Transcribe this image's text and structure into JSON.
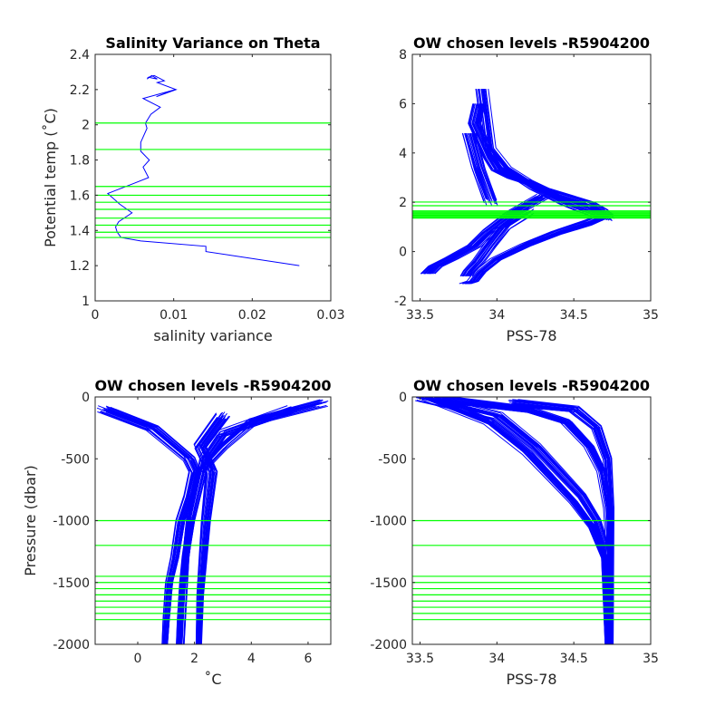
{
  "chart_data": [
    {
      "id": "p1",
      "type": "line",
      "title": "Salinity Variance on Theta",
      "xlabel": "salinity variance",
      "ylabel": "Potential temp (˚C)",
      "xlim": [
        0,
        0.03
      ],
      "ylim": [
        1,
        2.4
      ],
      "xticks": [
        0,
        0.01,
        0.02,
        0.03
      ],
      "xtick_labels": [
        "0",
        "0.01",
        "0.02",
        "0.03"
      ],
      "yticks": [
        1,
        1.2,
        1.4,
        1.6,
        1.8,
        2,
        2.2,
        2.4
      ],
      "ytick_labels": [
        "1",
        "1.2",
        "1.4",
        "1.6",
        "1.8",
        "2",
        "2.2",
        "2.4"
      ],
      "levels": [
        2.01,
        1.86,
        1.65,
        1.6,
        1.56,
        1.52,
        1.47,
        1.43,
        1.39,
        1.36
      ],
      "series": [
        {
          "x": [
            0.026,
            0.0141,
            0.0141,
            0.0058,
            0.0033,
            0.0028,
            0.0026,
            0.003,
            0.0047,
            0.0031,
            0.0016,
            0.0045,
            0.0068,
            0.0061,
            0.0069,
            0.0058,
            0.0058,
            0.0066,
            0.0064,
            0.0071,
            0.0083,
            0.0061,
            0.0102,
            0.0078,
            0.0103,
            0.0079,
            0.0088,
            0.0075,
            0.0068,
            0.0079,
            0.0072,
            0.0066
          ],
          "y": [
            1.2,
            1.28,
            1.31,
            1.34,
            1.36,
            1.39,
            1.42,
            1.45,
            1.5,
            1.55,
            1.61,
            1.66,
            1.7,
            1.76,
            1.8,
            1.85,
            1.9,
            1.98,
            2.01,
            2.06,
            2.1,
            2.15,
            2.2,
            2.16,
            2.2,
            2.24,
            2.25,
            2.28,
            2.27,
            2.26,
            2.28,
            2.26
          ]
        }
      ]
    },
    {
      "id": "p2",
      "type": "line",
      "title": "OW chosen levels -R5904200",
      "xlabel": "PSS-78",
      "ylabel": "",
      "xlim": [
        33.45,
        35
      ],
      "ylim": [
        -2,
        8
      ],
      "xticks": [
        33.5,
        34,
        34.5,
        35
      ],
      "xtick_labels": [
        "33.5",
        "34",
        "34.5",
        "35"
      ],
      "yticks": [
        -2,
        0,
        2,
        4,
        6,
        8
      ],
      "ytick_labels": [
        "-2",
        "0",
        "2",
        "4",
        "6",
        "8"
      ],
      "levels": [
        2.01,
        1.86,
        1.65,
        1.6,
        1.56,
        1.52,
        1.47,
        1.43,
        1.39,
        1.36
      ],
      "series": [
        {
          "x": [
            34.72,
            34.68,
            34.6,
            34.5,
            34.4,
            34.3,
            34.2,
            34.1,
            34.0,
            33.95,
            33.9,
            33.85,
            33.88
          ],
          "y": [
            1.35,
            1.6,
            1.9,
            2.1,
            2.3,
            2.5,
            2.8,
            3.0,
            3.3,
            3.8,
            4.5,
            5.2,
            6.0
          ]
        },
        {
          "x": [
            34.7,
            34.6,
            34.4,
            34.2,
            34.0,
            33.9,
            33.85,
            33.8
          ],
          "y": [
            1.5,
            1.2,
            0.8,
            0.3,
            -0.3,
            -0.8,
            -1.2,
            -1.3
          ]
        },
        {
          "x": [
            34.3,
            34.1,
            33.95,
            33.85,
            33.7,
            33.6,
            33.55
          ],
          "y": [
            2.2,
            1.5,
            0.8,
            0.2,
            -0.3,
            -0.6,
            -0.9
          ]
        },
        {
          "x": [
            34.7,
            34.45,
            34.25,
            34.05,
            33.95,
            33.9
          ],
          "y": [
            1.4,
            2.0,
            2.6,
            3.4,
            4.2,
            6.6
          ]
        },
        {
          "x": [
            34.2,
            34.05,
            33.95,
            33.88,
            33.82,
            33.8
          ],
          "y": [
            1.6,
            1.0,
            0.2,
            -0.4,
            -0.8,
            -1.0
          ]
        },
        {
          "x": [
            33.96,
            33.88,
            33.82
          ],
          "y": [
            2.0,
            3.4,
            4.8
          ]
        }
      ]
    },
    {
      "id": "p3",
      "type": "line",
      "title": "OW chosen levels -R5904200",
      "xlabel": "˚C",
      "ylabel": "Pressure (dbar)",
      "xlim": [
        -1.5,
        6.8
      ],
      "ylim": [
        -2000,
        0
      ],
      "xticks": [
        0,
        2,
        4,
        6
      ],
      "xtick_labels": [
        "0",
        "2",
        "4",
        "6"
      ],
      "yticks": [
        -2000,
        -1500,
        -1000,
        -500,
        0
      ],
      "ytick_labels": [
        "-2000",
        "-1500",
        "-1000",
        "-500",
        "0"
      ],
      "levels": [
        -1000,
        -1200,
        -1450,
        -1500,
        -1550,
        -1600,
        -1650,
        -1700,
        -1750,
        -1800
      ],
      "series": [
        {
          "x": [
            5.5,
            3.0,
            2.4,
            2.3,
            2.1,
            1.9,
            1.7,
            1.6,
            1.5,
            1.45
          ],
          "y": [
            -100,
            -300,
            -500,
            -600,
            -800,
            -1000,
            -1300,
            -1500,
            -1800,
            -2000
          ]
        },
        {
          "x": [
            -1.2,
            0.5,
            1.8,
            2.0,
            1.8,
            1.5,
            1.3,
            1.1,
            1.0,
            0.95
          ],
          "y": [
            -100,
            -250,
            -500,
            -600,
            -800,
            -1000,
            -1300,
            -1500,
            -1800,
            -2000
          ]
        },
        {
          "x": [
            3.0,
            2.2,
            2.6,
            2.5,
            2.4,
            2.3,
            2.2,
            2.15
          ],
          "y": [
            -150,
            -400,
            -600,
            -800,
            -1000,
            -1300,
            -1600,
            -2000
          ]
        },
        {
          "x": [
            6.5,
            4.0,
            3.0,
            2.2,
            1.9,
            1.7,
            1.55
          ],
          "y": [
            -50,
            -200,
            -400,
            -600,
            -900,
            -1300,
            -2000
          ]
        }
      ]
    },
    {
      "id": "p4",
      "type": "line",
      "title": "OW chosen levels -R5904200",
      "xlabel": "PSS-78",
      "ylabel": "",
      "xlim": [
        33.45,
        35
      ],
      "ylim": [
        -2000,
        0
      ],
      "xticks": [
        33.5,
        34,
        34.5,
        35
      ],
      "xtick_labels": [
        "33.5",
        "34",
        "34.5",
        "35"
      ],
      "yticks": [
        -2000,
        -1500,
        -1000,
        -500,
        0
      ],
      "ytick_labels": [
        "-2000",
        "-1500",
        "-1000",
        "-500",
        "0"
      ],
      "levels": [
        -1000,
        -1200,
        -1450,
        -1500,
        -1550,
        -1600,
        -1650,
        -1700,
        -1750,
        -1800
      ],
      "series": [
        {
          "x": [
            33.5,
            34.0,
            34.25,
            34.4,
            34.55,
            34.65,
            34.7,
            34.72,
            34.72
          ],
          "y": [
            0,
            -150,
            -400,
            -600,
            -800,
            -1000,
            -1200,
            -1500,
            -2000
          ]
        },
        {
          "x": [
            33.6,
            34.2,
            34.45,
            34.6,
            34.68,
            34.72,
            34.73,
            34.73
          ],
          "y": [
            -10,
            -100,
            -200,
            -400,
            -600,
            -900,
            -1200,
            -2000
          ]
        },
        {
          "x": [
            33.55,
            33.95,
            34.2,
            34.35,
            34.5,
            34.62,
            34.7,
            34.72
          ],
          "y": [
            0,
            -200,
            -450,
            -650,
            -850,
            -1050,
            -1300,
            -2000
          ]
        },
        {
          "x": [
            34.1,
            34.5,
            34.65,
            34.72,
            34.74,
            34.74
          ],
          "y": [
            -50,
            -100,
            -250,
            -500,
            -900,
            -2000
          ]
        }
      ]
    }
  ]
}
